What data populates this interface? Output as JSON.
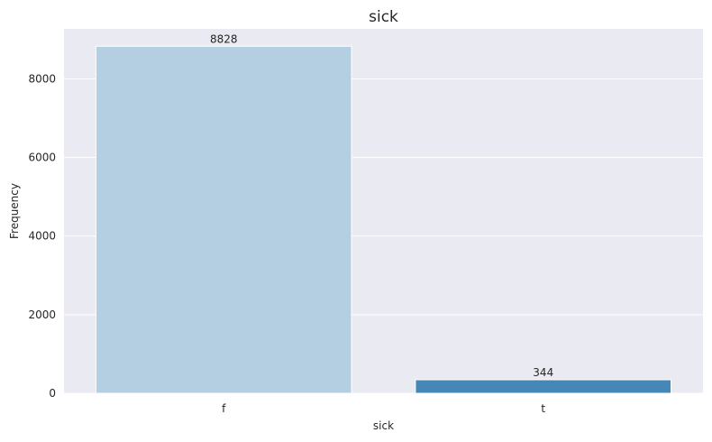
{
  "chart_data": {
    "type": "bar",
    "title": "sick",
    "xlabel": "sick",
    "ylabel": "Frequency",
    "categories": [
      "f",
      "t"
    ],
    "values": [
      8828,
      344
    ],
    "data_labels": [
      "8828",
      "344"
    ],
    "ylim": [
      0,
      9270
    ],
    "yticks": [
      0,
      2000,
      4000,
      6000,
      8000
    ],
    "ytick_labels": [
      "0",
      "2000",
      "4000",
      "6000",
      "8000"
    ],
    "grid": true,
    "bar_colors": [
      "#b3cfe1",
      "#4587b6"
    ],
    "background_color": "#eaeaf2",
    "grid_color": "#ffffff"
  }
}
